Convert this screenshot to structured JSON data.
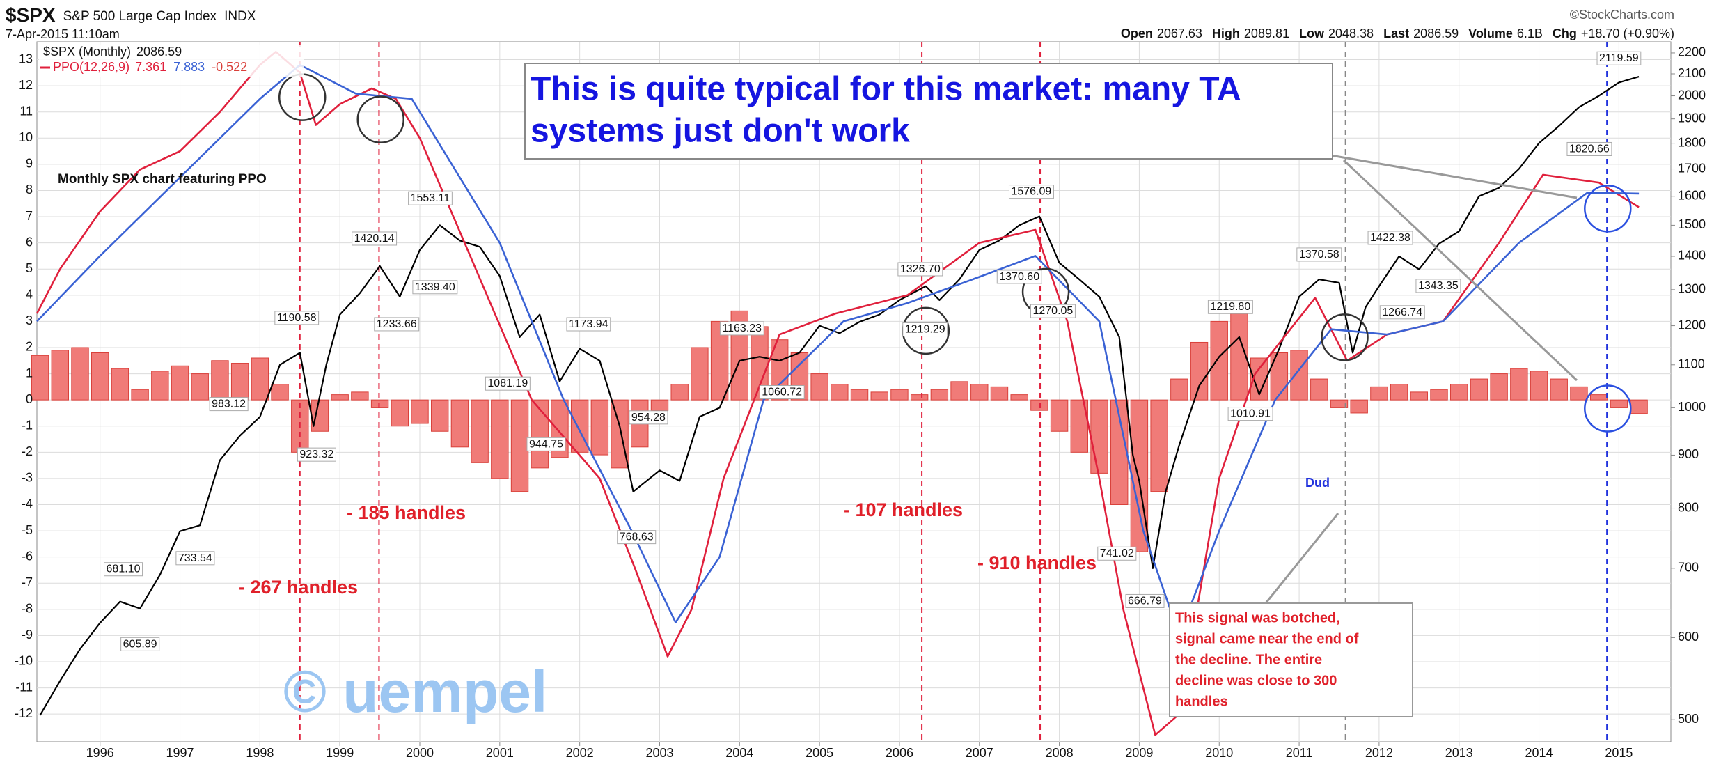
{
  "header": {
    "symbol": "$SPX",
    "name": "S&P 500 Large Cap Index",
    "exchange": "INDX",
    "date": "7-Apr-2015 11:10am",
    "source": "©StockCharts.com",
    "stats": [
      {
        "label": "Open",
        "value": 2067.63
      },
      {
        "label": "High",
        "value": 2089.81
      },
      {
        "label": "Low",
        "value": 2048.38
      },
      {
        "label": "Last",
        "value": 2086.59
      },
      {
        "label": "Volume",
        "value": "6.1B"
      },
      {
        "label": "Chg",
        "value": "+18.70 (+0.90%)"
      }
    ]
  },
  "chart_data": {
    "type": "line",
    "xlim": [
      1995.21,
      2015.65
    ],
    "xticks": [
      1996,
      1997,
      1998,
      1999,
      2000,
      2001,
      2002,
      2003,
      2004,
      2005,
      2006,
      2007,
      2008,
      2009,
      2010,
      2011,
      2012,
      2013,
      2014,
      2015
    ],
    "ylim": [
      -13.06,
      13.68
    ],
    "yticks": [
      -12,
      -11,
      -10,
      -9,
      -8,
      -7,
      -6,
      -5,
      -4,
      -3,
      -2,
      -1,
      0,
      1,
      2,
      3,
      4,
      5,
      6,
      7,
      8,
      9,
      10,
      11,
      12,
      13
    ],
    "y2lim": [
      476,
      2255
    ],
    "y2scale": "log",
    "y2ticks": [
      500,
      600,
      700,
      800,
      900,
      1000,
      1100,
      1200,
      1300,
      1400,
      1500,
      1600,
      1700,
      1800,
      1900,
      2000,
      2100,
      2200
    ],
    "grid": true,
    "series": [
      {
        "name": "$SPX (Monthly)",
        "color": "#000000",
        "axis": "y2",
        "x": [
          1995.25,
          1995.5,
          1995.75,
          1996.0,
          1996.25,
          1996.5,
          1996.75,
          1997.0,
          1997.25,
          1997.5,
          1997.75,
          1998.0,
          1998.25,
          1998.5,
          1998.67,
          1998.83,
          1999.0,
          1999.25,
          1999.5,
          1999.75,
          2000.0,
          2000.25,
          2000.5,
          2000.75,
          2001.0,
          2001.25,
          2001.5,
          2001.75,
          2002.0,
          2002.25,
          2002.5,
          2002.67,
          2003.0,
          2003.25,
          2003.5,
          2003.75,
          2004.0,
          2004.25,
          2004.5,
          2004.75,
          2005.0,
          2005.25,
          2005.5,
          2005.75,
          2006.0,
          2006.33,
          2006.5,
          2006.75,
          2007.0,
          2007.25,
          2007.5,
          2007.75,
          2008.0,
          2008.25,
          2008.5,
          2008.75,
          2008.92,
          2009.0,
          2009.17,
          2009.33,
          2009.5,
          2009.75,
          2010.0,
          2010.25,
          2010.5,
          2010.75,
          2011.0,
          2011.25,
          2011.5,
          2011.67,
          2011.83,
          2012.0,
          2012.25,
          2012.5,
          2012.75,
          2013.0,
          2013.25,
          2013.5,
          2013.75,
          2014.0,
          2014.25,
          2014.5,
          2014.75,
          2015.0,
          2015.25
        ],
        "values": [
          505,
          545,
          585,
          620,
          650,
          640,
          690,
          760,
          770,
          890,
          940,
          980,
          1100,
          1130,
          960,
          1100,
          1230,
          1290,
          1370,
          1280,
          1420,
          1500,
          1450,
          1430,
          1340,
          1170,
          1230,
          1060,
          1140,
          1110,
          960,
          830,
          870,
          850,
          980,
          1000,
          1110,
          1120,
          1110,
          1130,
          1200,
          1180,
          1210,
          1230,
          1270,
          1310,
          1270,
          1330,
          1420,
          1450,
          1500,
          1530,
          1380,
          1330,
          1280,
          1170,
          900,
          850,
          700,
          830,
          920,
          1050,
          1120,
          1170,
          1030,
          1140,
          1280,
          1330,
          1320,
          1130,
          1250,
          1310,
          1400,
          1360,
          1440,
          1480,
          1600,
          1630,
          1700,
          1800,
          1870,
          1950,
          2000,
          2060,
          2086.59
        ]
      },
      {
        "name": "PPO(12,26,9)",
        "color": "#e0203c",
        "x": [
          1995.21,
          1995.5,
          1996.0,
          1996.5,
          1997.0,
          1997.5,
          1998.0,
          1998.2,
          1998.5,
          1998.7,
          1999.0,
          1999.4,
          1999.7,
          2000.0,
          2000.7,
          2001.4,
          2002.25,
          2002.7,
          2003.1,
          2003.4,
          2003.8,
          2004.5,
          2005.2,
          2006.1,
          2007.0,
          2007.7,
          2008.1,
          2008.5,
          2008.8,
          2009.2,
          2009.5,
          2010.0,
          2010.45,
          2011.2,
          2011.6,
          2012.1,
          2012.8,
          2013.5,
          2014.05,
          2014.75,
          2015.25
        ],
        "values": [
          3.3,
          5,
          7.2,
          8.8,
          9.5,
          11,
          12.8,
          13.3,
          12.5,
          10.5,
          11.3,
          11.9,
          11.5,
          10,
          5,
          0,
          -3,
          -6.5,
          -9.8,
          -8,
          -3,
          2.5,
          3.3,
          4,
          6,
          6.5,
          3,
          -3,
          -8,
          -12.8,
          -12,
          -3,
          1,
          3.9,
          1.5,
          2.5,
          3,
          6,
          8.6,
          8.3,
          7.361
        ]
      },
      {
        "color": "#3a62d4",
        "x": [
          1995.21,
          1996.0,
          1997.0,
          1998.0,
          1998.5,
          1999.2,
          1999.9,
          2001.0,
          2001.8,
          2002.65,
          2003.2,
          2003.75,
          2004.3,
          2005.3,
          2006.1,
          2007.0,
          2007.7,
          2008.5,
          2009.05,
          2009.5,
          2010.0,
          2010.7,
          2011.4,
          2012.1,
          2012.8,
          2013.75,
          2014.6,
          2014.9,
          2015.25
        ],
        "values": [
          3.0,
          5.5,
          8.5,
          11.5,
          12.8,
          11.7,
          11.5,
          6,
          0,
          -5,
          -8.5,
          -6,
          0,
          3,
          3.7,
          4.7,
          5.5,
          3,
          -5,
          -9,
          -5,
          0,
          2.7,
          2.5,
          3,
          6,
          7.9,
          7.9,
          7.883
        ]
      }
    ],
    "bars": {
      "color": "#f07b78",
      "edge": "#d9403a",
      "x": [
        1995.25,
        1995.5,
        1995.75,
        1996.0,
        1996.25,
        1996.5,
        1996.75,
        1997.0,
        1997.25,
        1997.5,
        1997.75,
        1998.0,
        1998.25,
        1998.5,
        1998.75,
        1999.0,
        1999.25,
        1999.5,
        1999.75,
        2000.0,
        2000.25,
        2000.5,
        2000.75,
        2001.0,
        2001.25,
        2001.5,
        2001.75,
        2002.0,
        2002.25,
        2002.5,
        2002.75,
        2003.0,
        2003.25,
        2003.5,
        2003.75,
        2004.0,
        2004.25,
        2004.5,
        2004.75,
        2005.0,
        2005.25,
        2005.5,
        2005.75,
        2006.0,
        2006.25,
        2006.5,
        2006.75,
        2007.0,
        2007.25,
        2007.5,
        2007.75,
        2008.0,
        2008.25,
        2008.5,
        2008.75,
        2009.0,
        2009.25,
        2009.5,
        2009.75,
        2010.0,
        2010.25,
        2010.5,
        2010.75,
        2011.0,
        2011.25,
        2011.5,
        2011.75,
        2012.0,
        2012.25,
        2012.5,
        2012.75,
        2013.0,
        2013.25,
        2013.5,
        2013.75,
        2014.0,
        2014.25,
        2014.5,
        2014.75,
        2015.0,
        2015.25
      ],
      "values": [
        1.7,
        1.9,
        2.0,
        1.8,
        1.2,
        0.4,
        1.1,
        1.3,
        1.0,
        1.5,
        1.4,
        1.6,
        0.6,
        -2.0,
        -1.2,
        0.2,
        0.3,
        -0.3,
        -1.0,
        -0.9,
        -1.2,
        -1.8,
        -2.4,
        -3.0,
        -3.5,
        -2.6,
        -2.2,
        -2.0,
        -2.1,
        -2.6,
        -1.8,
        -0.4,
        0.6,
        2.0,
        3.0,
        3.4,
        2.8,
        2.3,
        1.8,
        1.0,
        0.6,
        0.4,
        0.3,
        0.4,
        0.2,
        0.4,
        0.7,
        0.6,
        0.5,
        0.2,
        -0.4,
        -1.2,
        -2.0,
        -2.8,
        -4.0,
        -5.8,
        -3.5,
        0.8,
        2.2,
        3.0,
        3.3,
        1.6,
        1.8,
        1.9,
        0.8,
        -0.3,
        -0.5,
        0.5,
        0.6,
        0.3,
        0.4,
        0.6,
        0.8,
        1.0,
        1.2,
        1.1,
        0.8,
        0.5,
        0.2,
        -0.3,
        -0.522
      ]
    },
    "price_labels": {
      "x": [
        1998.46,
        1997.61,
        1998.71,
        1996.29,
        1996.5,
        1997.19,
        1999.43,
        1999.71,
        2000.13,
        2000.19,
        2001.1,
        2002.11,
        2001.58,
        2002.86,
        2002.71,
        2004.03,
        2004.53,
        2006.26,
        2006.32,
        2007.65,
        2007.5,
        2007.92,
        2008.72,
        2009.07,
        2010.14,
        2010.39,
        2011.25,
        2012.14,
        2012.74,
        2012.29,
        2014.63,
        2015.0
      ],
      "values": [
        1190.58,
        983.12,
        923.32,
        681.1,
        605.89,
        733.54,
        1420.14,
        1233.66,
        1553.11,
        1339.4,
        1081.19,
        1173.94,
        944.75,
        954.28,
        768.63,
        1163.23,
        1060.72,
        1326.7,
        1219.29,
        1576.09,
        1370.6,
        1270.05,
        741.02,
        666.79,
        1219.8,
        1010.91,
        1370.58,
        1422.38,
        1343.35,
        1266.74,
        1820.66,
        2119.59
      ],
      "value_labels": [
        "1190.58",
        "983.12",
        "923.32",
        "681.10",
        "605.89",
        "733.54",
        "1420.14",
        "1233.66",
        "1553.11",
        "1339.40",
        "1081.19",
        "1173.94",
        "944.75",
        "954.28",
        "768.63",
        "1163.23",
        "1060.72",
        "1326.70",
        "1219.29",
        "1576.09",
        "1370.60",
        "1270.05",
        "741.02",
        "666.79",
        "1219.80",
        "1010.91",
        "1370.58",
        "1422.38",
        "1343.35",
        "1266.74",
        "1820.66",
        "2119.59"
      ]
    },
    "signals": [
      {
        "x": 1998.5,
        "color": "#e0203c"
      },
      {
        "x": 1999.49,
        "color": "#e0203c"
      },
      {
        "x": 2006.28,
        "color": "#e0203c"
      },
      {
        "x": 2007.76,
        "color": "#e0203c"
      },
      {
        "x": 2011.58,
        "color": "#888888"
      },
      {
        "x": 2014.85,
        "color": "#2233dd"
      }
    ],
    "highlights": [
      {
        "x": 1998.53,
        "y": 11.56,
        "color": "#333333"
      },
      {
        "x": 1999.51,
        "y": 10.71,
        "color": "#333333"
      },
      {
        "x": 2006.33,
        "y": 2.64,
        "color": "#333333"
      },
      {
        "x": 2007.83,
        "y": 4.13,
        "color": "#333333"
      },
      {
        "x": 2011.57,
        "y": 2.39,
        "color": "#333333"
      },
      {
        "x": 2014.86,
        "y": 7.31,
        "color": "#2a4fe0"
      },
      {
        "x": 2014.86,
        "y": -0.33,
        "color": "#2a4fe0"
      }
    ],
    "annotations": {
      "caption": "Monthly SPX chart featuring PPO",
      "headline": [
        "This is quite typical for this market: many TA",
        "systems just don't work"
      ],
      "handles": [
        "- 267 handles",
        "- 185 handles",
        "- 107 handles",
        "- 910 handles"
      ],
      "dud": "Dud",
      "botched": [
        "This signal was botched,",
        "signal came near the end of",
        "the decline. The entire",
        "decline was close to 300",
        "handles"
      ],
      "watermark": "© uempel"
    }
  }
}
